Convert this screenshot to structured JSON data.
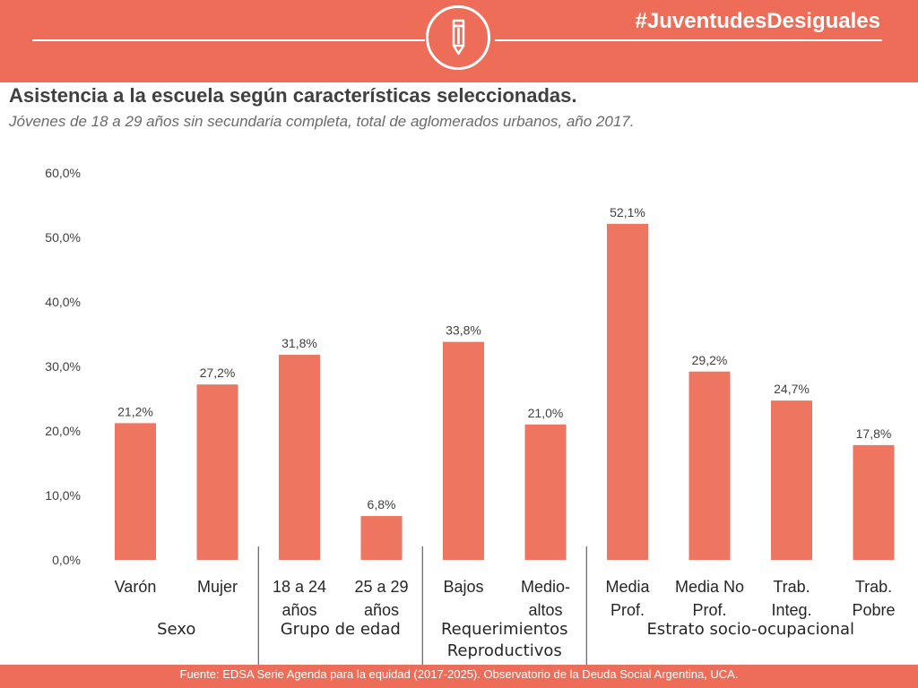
{
  "header": {
    "hashtag": "#JuventudesDesiguales",
    "icon": "pencil-icon",
    "color": "#ee6d58"
  },
  "title": "Asistencia a la escuela según características seleccionadas.",
  "subtitle": "Jóvenes de 18 a 29 años sin secundaria completa, total de aglomerados urbanos, año 2017.",
  "footer": "Fuente: EDSA Serie Agenda para la equidad (2017-2025). Observatorio de la Deuda Social Argentina, UCA.",
  "chart_data": {
    "type": "bar",
    "bar_color": "#ee7660",
    "ylim": [
      0,
      60
    ],
    "yticks": [
      "0,0%",
      "10,0%",
      "20,0%",
      "30,0%",
      "40,0%",
      "50,0%",
      "60,0%"
    ],
    "categories": [
      [
        "Varón"
      ],
      [
        "Mujer"
      ],
      [
        "18 a 24",
        "años"
      ],
      [
        "25 a 29",
        "años"
      ],
      [
        "Bajos"
      ],
      [
        "Medio-",
        "altos"
      ],
      [
        "Media",
        "Prof."
      ],
      [
        "Media No",
        "Prof."
      ],
      [
        "Trab.",
        "Integ."
      ],
      [
        "Trab.",
        "Pobre"
      ]
    ],
    "values": [
      21.2,
      27.2,
      31.8,
      6.8,
      33.8,
      21.0,
      52.1,
      29.2,
      24.7,
      17.8
    ],
    "value_labels": [
      "21,2%",
      "27,2%",
      "31,8%",
      "6,8%",
      "33,8%",
      "21,0%",
      "52,1%",
      "29,2%",
      "24,7%",
      "17,8%"
    ],
    "groups": [
      {
        "label": [
          "Sexo"
        ],
        "start": 0,
        "end": 1
      },
      {
        "label": [
          "Grupo de edad"
        ],
        "start": 2,
        "end": 3
      },
      {
        "label": [
          "Requerimientos",
          "Reproductivos"
        ],
        "start": 4,
        "end": 5
      },
      {
        "label": [
          "Estrato socio-ocupacional"
        ],
        "start": 6,
        "end": 9
      }
    ],
    "grid": false,
    "legend": "none"
  }
}
